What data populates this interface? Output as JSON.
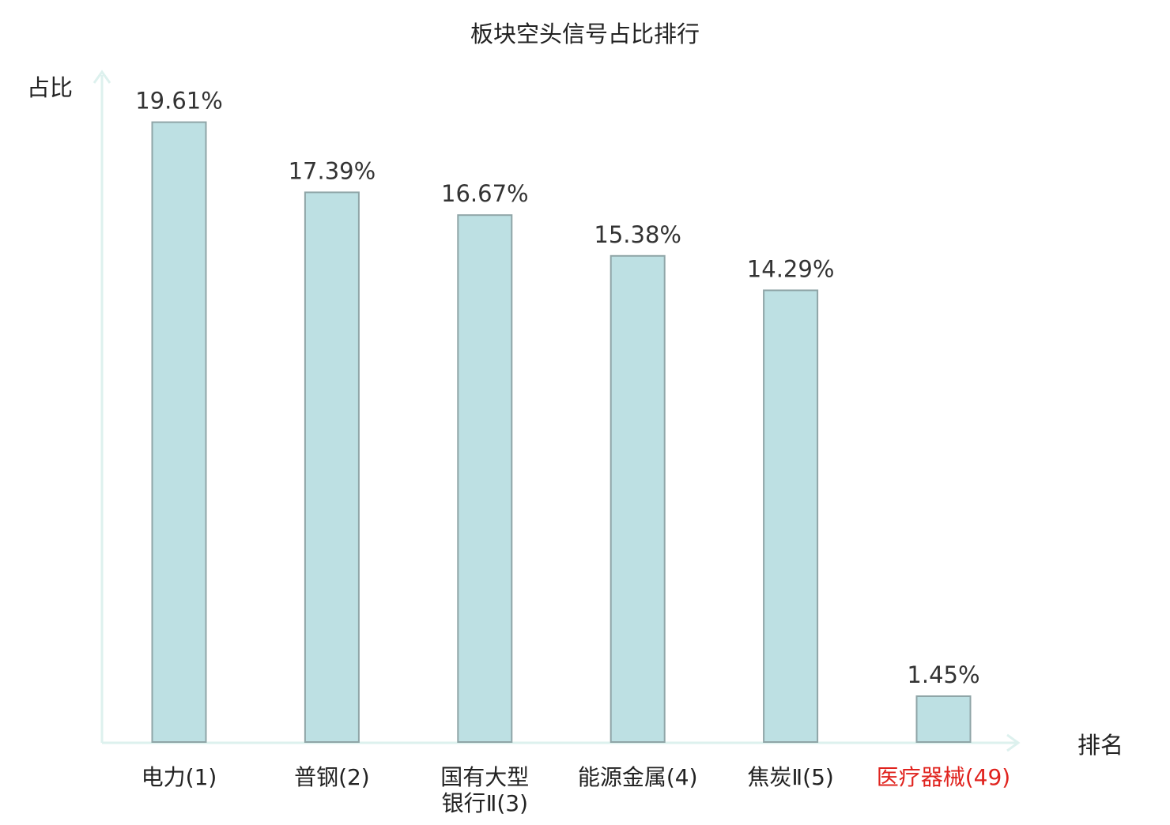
{
  "chart_data": {
    "type": "bar",
    "title": "板块空头信号占比排行",
    "ylabel": "占比",
    "xlabel": "排名",
    "ylim": [
      0,
      20.8
    ],
    "grid": false,
    "legend": "none",
    "categories": [
      {
        "lines": [
          "电力(1)"
        ],
        "highlight": false
      },
      {
        "lines": [
          "普钢(2)"
        ],
        "highlight": false
      },
      {
        "lines": [
          "国有大型",
          "银行Ⅱ(3)"
        ],
        "highlight": false
      },
      {
        "lines": [
          "能源金属(4)"
        ],
        "highlight": false
      },
      {
        "lines": [
          "焦炭Ⅱ(5)"
        ],
        "highlight": false
      },
      {
        "lines": [
          "医疗器械(49)"
        ],
        "highlight": true
      }
    ],
    "values": [
      19.61,
      17.39,
      16.67,
      15.38,
      14.29,
      1.45
    ],
    "value_labels": [
      "19.61%",
      "17.39%",
      "16.67%",
      "15.38%",
      "14.29%",
      "1.45%"
    ],
    "colors": {
      "bar_fill": "#bde0e3",
      "bar_stroke": "#8fa5a7",
      "axis": "#ddf1ee",
      "text": "#222222",
      "value_text": "#333333",
      "highlight_text": "#e0231e"
    }
  }
}
